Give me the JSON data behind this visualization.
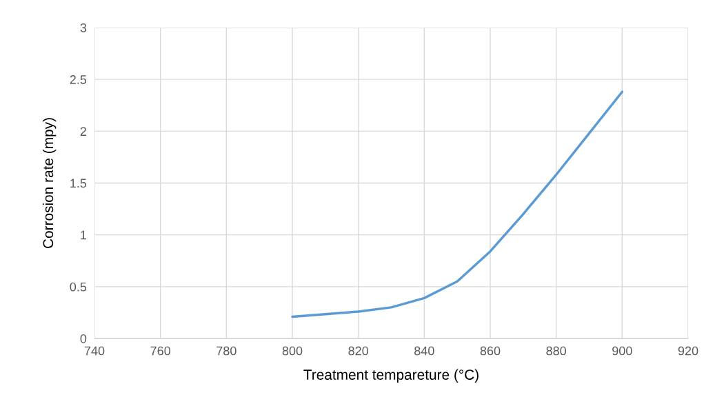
{
  "chart_data": {
    "type": "line",
    "xlabel": "Treatment tempareture (°C)",
    "ylabel": "Corrosion rate (mpy)",
    "x": [
      800,
      810,
      820,
      830,
      840,
      850,
      860,
      870,
      880,
      890,
      900
    ],
    "series": [
      {
        "color": "#5b9bd5",
        "values": [
          0.21,
          0.235,
          0.26,
          0.3,
          0.39,
          0.55,
          0.84,
          1.2,
          1.58,
          1.98,
          2.38
        ]
      }
    ],
    "xlim": [
      740,
      920
    ],
    "xticks": [
      740,
      760,
      780,
      800,
      820,
      840,
      860,
      880,
      900,
      920
    ],
    "ylim": [
      0,
      3
    ],
    "yticks": [
      0,
      0.5,
      1,
      1.5,
      2,
      2.5,
      3
    ],
    "grid": true,
    "legend": false,
    "marker": "none",
    "line_style": "solid"
  }
}
